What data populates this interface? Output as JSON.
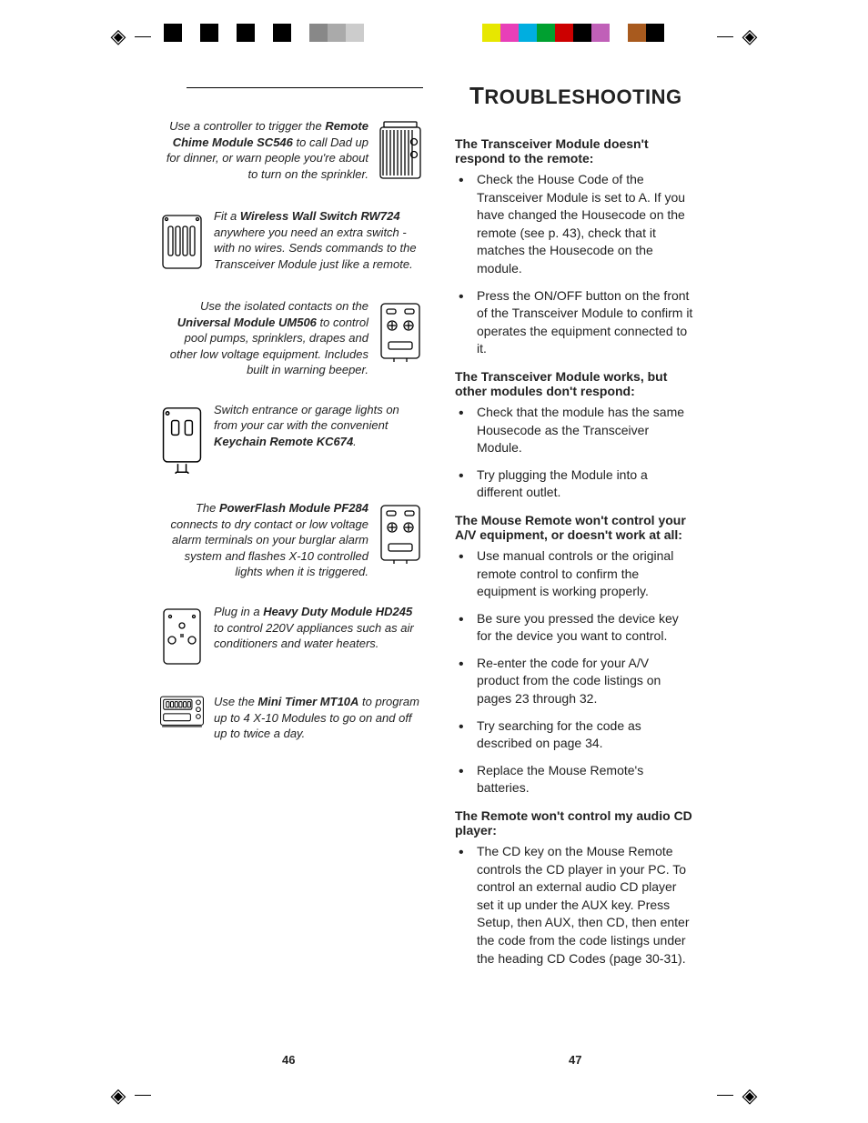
{
  "heading": "Troubleshooting",
  "left": [
    {
      "side": "r",
      "icon": "chime",
      "pre": "Use a controller to trigger the ",
      "bold": "Remote Chime Module SC546",
      "post": " to call Dad up for dinner, or warn people you're about to turn on the sprinkler."
    },
    {
      "side": "l",
      "icon": "switch",
      "pre": "Fit a ",
      "bold": "Wireless Wall Switch RW724",
      "post": " anywhere you need an extra switch - with no wires. Sends commands to the Transceiver Module just like a remote."
    },
    {
      "side": "r",
      "icon": "universal",
      "pre": "Use the isolated contacts on the ",
      "bold": "Universal Module UM506",
      "post": " to control pool pumps, sprinklers, drapes and other low voltage equipment. Includes built in warning beeper."
    },
    {
      "side": "l",
      "icon": "keychain",
      "pre": "Switch entrance or garage lights on from your car with the convenient ",
      "bold": "Keychain Remote KC674",
      "post": "."
    },
    {
      "side": "r",
      "icon": "powerflash",
      "pre": "The ",
      "bold": "PowerFlash Module PF284",
      "post": " connects to dry contact or low voltage alarm terminals on your burglar alarm system and flashes X-10 controlled lights when it is triggered."
    },
    {
      "side": "l",
      "icon": "heavyduty",
      "pre": "Plug in a ",
      "bold": "Heavy Duty Module HD245",
      "post": " to control 220V appliances such as air conditioners and water heaters."
    },
    {
      "side": "l",
      "icon": "timer",
      "pre": "Use the ",
      "bold": "Mini Timer MT10A",
      "post": " to program up to 4 X-10 Modules to go on and off up to twice a day."
    }
  ],
  "right": [
    {
      "h": "The Transceiver Module doesn't respond to the remote:",
      "items": [
        "Check the House Code of the Transceiver Module is set to A. If you have changed the Housecode on the remote (see p. 43), check that it matches the Housecode on the module.",
        "Press the ON/OFF button on the front of the Transceiver Module to confirm it operates the equipment connected to it."
      ]
    },
    {
      "h": "The Transceiver Module works, but other modules don't respond:",
      "items": [
        "Check that the module has the same Housecode as the Transceiver Module.",
        "Try plugging the Module into a different outlet."
      ]
    },
    {
      "h": "The Mouse Remote won't control your A/V equipment, or doesn't work at all:",
      "items": [
        "Use manual controls or the original remote control to confirm the equipment is working properly.",
        "Be sure you pressed the device key for the device you want to control.",
        "Re-enter the code for your A/V product from the code listings on pages 23 through 32.",
        "Try searching for the code as described on page 34.",
        "Replace the Mouse Remote's batteries."
      ]
    },
    {
      "h": "The Remote won't control my audio CD player:",
      "items": [
        "The CD key on the Mouse Remote controls the CD player in your PC. To control an external audio CD player set it up under the AUX key. Press Setup, then AUX, then CD, then enter the code from the code listings under the heading CD Codes (page 30-31)."
      ]
    }
  ],
  "printBarRightColors": [
    "#ffffff",
    "#e7e700",
    "#e83fb8",
    "#00aee0",
    "#00a030",
    "#cc0000",
    "#000000",
    "#c060b8",
    "#ffffff",
    "#a85a1e",
    "#000000",
    "#ffffff"
  ],
  "pageLeft": "46",
  "pageRight": "47"
}
